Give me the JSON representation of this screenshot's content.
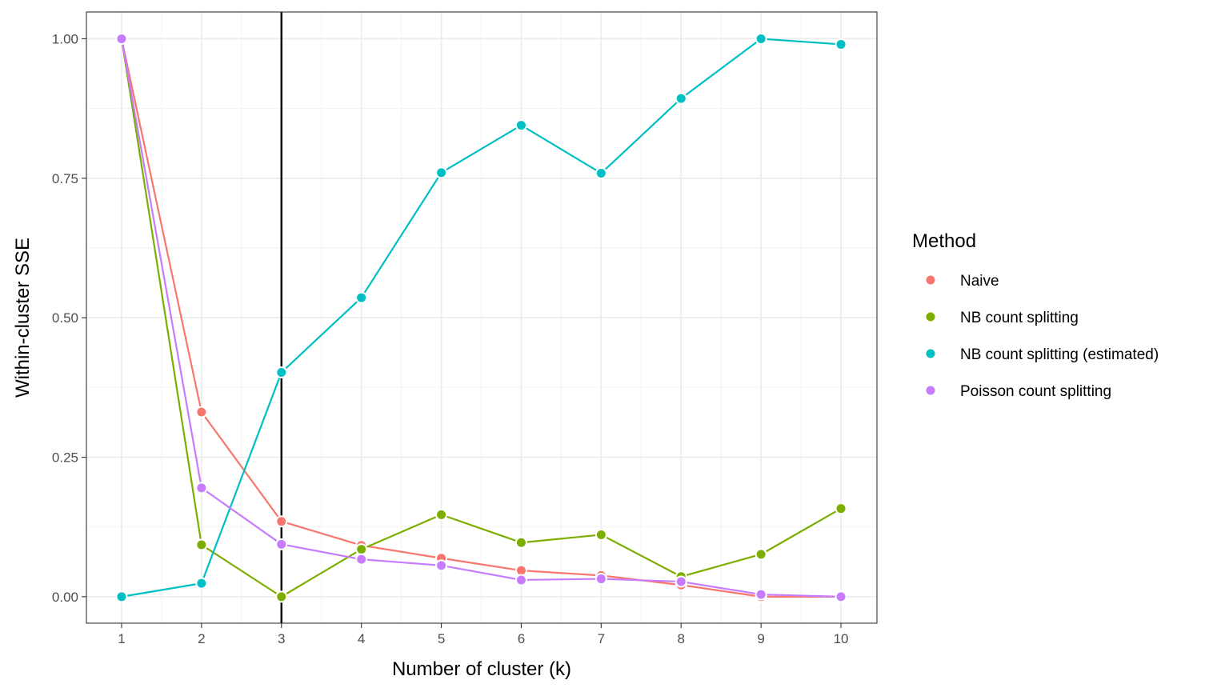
{
  "chart_data": {
    "type": "line",
    "title": "",
    "xlabel": "Number of cluster (k)",
    "ylabel": "Within-cluster SSE",
    "x": [
      1,
      2,
      3,
      4,
      5,
      6,
      7,
      8,
      9,
      10
    ],
    "x_ticks": [
      "1",
      "2",
      "3",
      "4",
      "5",
      "6",
      "7",
      "8",
      "9",
      "10"
    ],
    "y_ticks": [
      "0.00",
      "0.25",
      "0.50",
      "0.75",
      "1.00"
    ],
    "y_tick_values": [
      0,
      0.25,
      0.5,
      0.75,
      1.0
    ],
    "xlim": [
      0.56,
      10.45
    ],
    "ylim": [
      -0.0475,
      1.048
    ],
    "grid": true,
    "vline_x": 3,
    "legend": {
      "title": "Method",
      "position": "right"
    },
    "series": [
      {
        "name": "Naive",
        "color": "#F8766D",
        "values": [
          1.0,
          0.331,
          0.135,
          0.092,
          0.069,
          0.047,
          0.038,
          0.021,
          0.0,
          0.0
        ]
      },
      {
        "name": "NB count splitting",
        "color": "#7CAE00",
        "values": [
          1.0,
          0.093,
          0.0,
          0.085,
          0.147,
          0.097,
          0.111,
          0.036,
          0.076,
          0.158
        ]
      },
      {
        "name": "NB count splitting (estimated)",
        "color": "#00BFC4",
        "values": [
          0.0,
          0.024,
          0.402,
          0.536,
          0.76,
          0.845,
          0.759,
          0.893,
          1.0,
          0.99
        ]
      },
      {
        "name": "Poisson count splitting",
        "color": "#C77CFF",
        "values": [
          1.0,
          0.195,
          0.094,
          0.067,
          0.056,
          0.03,
          0.032,
          0.027,
          0.004,
          0.0
        ]
      }
    ]
  }
}
